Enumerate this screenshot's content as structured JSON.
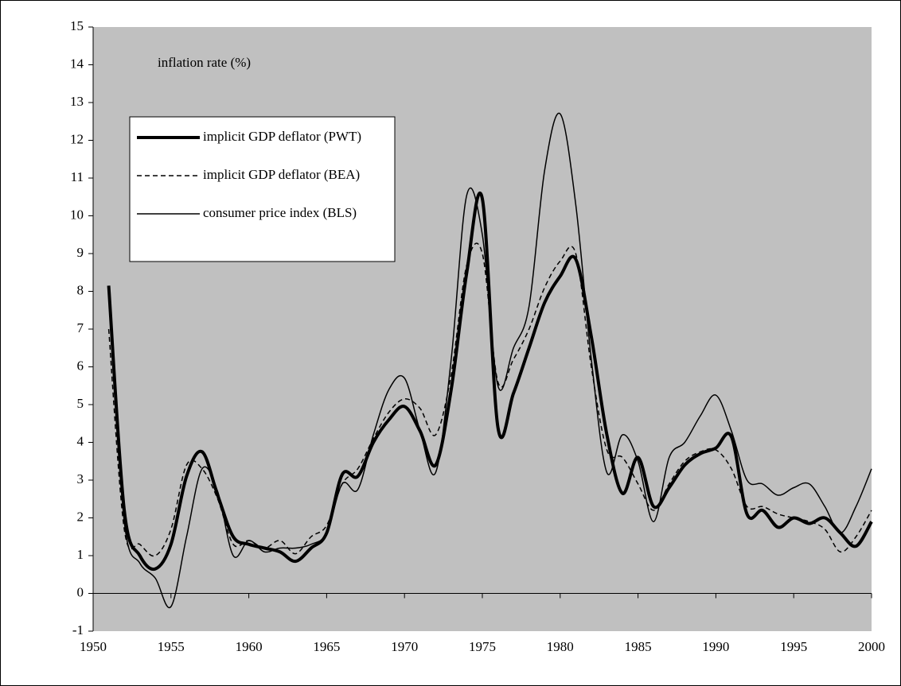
{
  "chart_data": {
    "type": "line",
    "annotation": "inflation rate (%)",
    "x": [
      1951,
      1952,
      1953,
      1954,
      1955,
      1956,
      1957,
      1958,
      1959,
      1960,
      1961,
      1962,
      1963,
      1964,
      1965,
      1966,
      1967,
      1968,
      1969,
      1970,
      1971,
      1972,
      1973,
      1974,
      1975,
      1976,
      1977,
      1978,
      1979,
      1980,
      1981,
      1982,
      1983,
      1984,
      1985,
      1986,
      1987,
      1988,
      1989,
      1990,
      1991,
      1992,
      1993,
      1994,
      1995,
      1996,
      1997,
      1998,
      1999,
      2000
    ],
    "series": [
      {
        "name": "implicit GDP deflator (PWT)",
        "color": "#000000",
        "width": 4,
        "dash": false,
        "values": [
          8.15,
          2.2,
          1.0,
          0.65,
          1.3,
          3.1,
          3.75,
          2.6,
          1.5,
          1.3,
          1.2,
          1.1,
          0.85,
          1.2,
          1.6,
          3.15,
          3.1,
          4.0,
          4.6,
          4.95,
          4.3,
          3.4,
          5.4,
          8.5,
          10.45,
          4.4,
          5.3,
          6.5,
          7.7,
          8.4,
          8.85,
          6.8,
          4.2,
          2.65,
          3.6,
          2.3,
          2.8,
          3.4,
          3.7,
          3.85,
          4.15,
          2.1,
          2.2,
          1.75,
          2.0,
          1.85,
          2.0,
          1.6,
          1.25,
          1.9
        ]
      },
      {
        "name": "implicit GDP deflator (BEA)",
        "color": "#000000",
        "width": 1.5,
        "dash": true,
        "values": [
          7.0,
          1.7,
          1.3,
          1.0,
          1.7,
          3.4,
          3.3,
          2.5,
          1.3,
          1.4,
          1.2,
          1.4,
          1.05,
          1.5,
          1.8,
          2.9,
          3.3,
          4.1,
          4.8,
          5.15,
          4.9,
          4.2,
          5.8,
          8.7,
          9.0,
          5.6,
          6.2,
          7.0,
          8.1,
          8.8,
          9.0,
          6.0,
          3.8,
          3.6,
          2.9,
          2.2,
          2.9,
          3.5,
          3.75,
          3.8,
          3.3,
          2.3,
          2.3,
          2.1,
          2.0,
          1.9,
          1.7,
          1.1,
          1.5,
          2.2
        ]
      },
      {
        "name": "consumer price index (BLS)",
        "color": "#000000",
        "width": 1.5,
        "dash": false,
        "values": [
          7.9,
          1.9,
          0.8,
          0.4,
          -0.35,
          1.5,
          3.3,
          2.7,
          1.0,
          1.4,
          1.1,
          1.2,
          1.2,
          1.3,
          1.6,
          2.9,
          2.75,
          4.2,
          5.4,
          5.7,
          4.3,
          3.2,
          6.2,
          10.55,
          9.5,
          5.5,
          6.5,
          7.6,
          11.2,
          12.7,
          10.3,
          6.2,
          3.2,
          4.2,
          3.5,
          1.9,
          3.6,
          4.0,
          4.7,
          5.25,
          4.3,
          3.0,
          2.9,
          2.6,
          2.8,
          2.9,
          2.3,
          1.6,
          2.3,
          3.3
        ]
      }
    ],
    "xlim": [
      1950,
      2000
    ],
    "xticks": [
      1950,
      1955,
      1960,
      1965,
      1970,
      1975,
      1980,
      1985,
      1990,
      1995,
      2000
    ],
    "ylim": [
      -1,
      15
    ],
    "yticks": [
      -1,
      0,
      1,
      2,
      3,
      4,
      5,
      6,
      7,
      8,
      9,
      10,
      11,
      12,
      13,
      14,
      15
    ],
    "grid": false,
    "background": "#c0c0c0",
    "legend": "upper left"
  }
}
